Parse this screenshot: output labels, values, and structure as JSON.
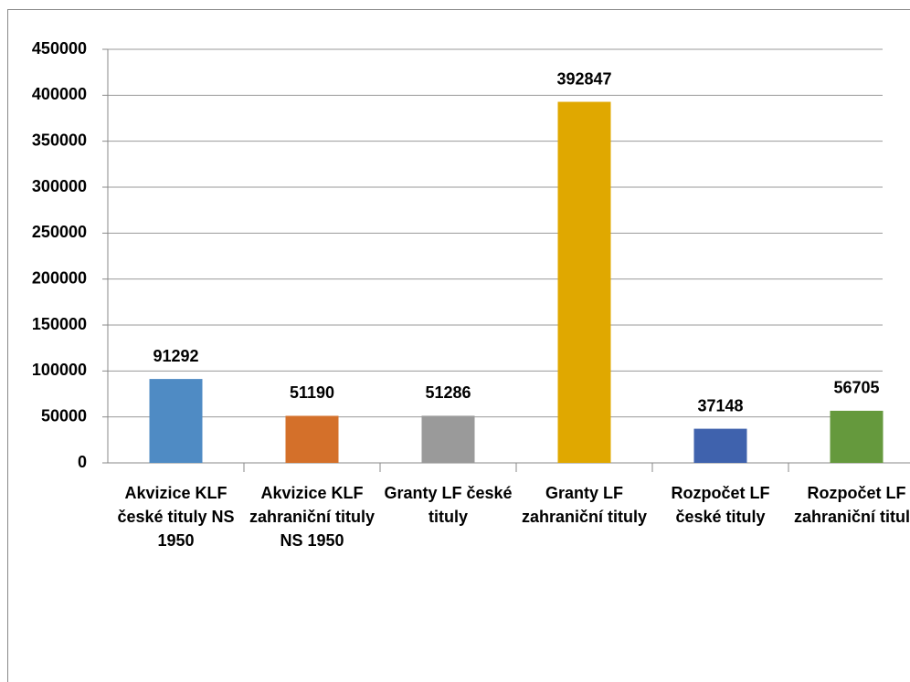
{
  "chart_data": {
    "type": "bar",
    "categories": [
      "Akvizice KLF české tituly NS 1950",
      "Akvizice KLF zahraniční tituly NS 1950",
      "Granty LF české tituly",
      "Granty LF zahraniční tituly",
      "Rozpočet LF české tituly",
      "Rozpočet LF zahraniční tituly"
    ],
    "values": [
      91292,
      51190,
      51286,
      392847,
      37148,
      56705
    ],
    "colors": [
      "#4f8bc4",
      "#d4702a",
      "#9a9a9a",
      "#e0a800",
      "#3f62ad",
      "#65993d"
    ],
    "ylim": [
      0,
      450000
    ],
    "yticks": [
      0,
      50000,
      100000,
      150000,
      200000,
      250000,
      300000,
      350000,
      400000,
      450000
    ],
    "grid": true
  }
}
